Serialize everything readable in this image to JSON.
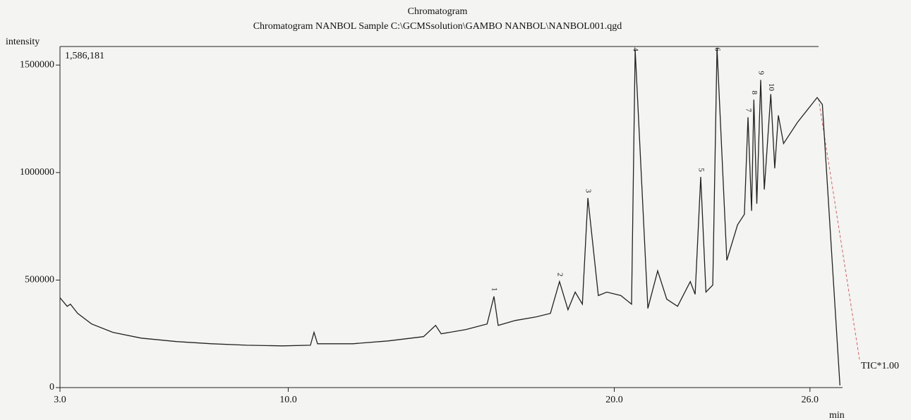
{
  "chart_data": {
    "type": "line",
    "title": "Chromatogram",
    "subtitle": "Chromatogram NANBOL Sample C:\\GCMSsolution\\GAMBO NANBOL\\NANBOL001.qgd",
    "y_label": "intensity",
    "x_label": "min",
    "max_label": "1,586,181",
    "xlim": [
      3,
      27
    ],
    "ylim": [
      0,
      1586181
    ],
    "xticks": [
      {
        "value": 3,
        "label": "3.0"
      },
      {
        "value": 10,
        "label": "10.0"
      },
      {
        "value": 20,
        "label": "20.0"
      },
      {
        "value": 26,
        "label": "26.0"
      }
    ],
    "yticks": [
      0,
      500000,
      1000000,
      1500000
    ],
    "series": [
      {
        "name": "TIC*1.00",
        "color": "#222222",
        "x": [
          3.0,
          3.22,
          3.32,
          3.54,
          3.97,
          4.62,
          5.49,
          6.57,
          7.65,
          8.74,
          9.82,
          10.68,
          10.79,
          10.9,
          11.98,
          13.06,
          14.15,
          14.52,
          14.69,
          15.45,
          16.1,
          16.31,
          16.44,
          16.96,
          17.61,
          18.04,
          18.32,
          18.58,
          18.8,
          19.02,
          19.19,
          19.51,
          19.77,
          20.2,
          20.53,
          20.64,
          21.03,
          21.33,
          21.61,
          21.94,
          22.33,
          22.48,
          22.65,
          22.81,
          23.02,
          23.15,
          23.45,
          23.78,
          23.99,
          24.1,
          24.21,
          24.28,
          24.37,
          24.49,
          24.6,
          24.8,
          24.92,
          25.03,
          25.19,
          25.62,
          26.05,
          26.22,
          26.38,
          26.92
        ],
        "values": [
          418000,
          378000,
          388000,
          345000,
          296000,
          257000,
          230000,
          214000,
          204000,
          197000,
          194000,
          197000,
          257000,
          204000,
          204000,
          217000,
          237000,
          289000,
          250000,
          270000,
          296000,
          424000,
          289000,
          312000,
          329000,
          345000,
          493000,
          362000,
          444000,
          388000,
          882000,
          428000,
          444000,
          428000,
          388000,
          1572000,
          368000,
          543000,
          411000,
          378000,
          493000,
          434000,
          980000,
          444000,
          477000,
          1580000,
          592000,
          757000,
          806000,
          1257000,
          822000,
          1339000,
          855000,
          1431000,
          921000,
          1365000,
          1020000,
          1266000,
          1135000,
          1234000,
          1316000,
          1349000,
          1316000,
          10000
        ]
      }
    ],
    "peaks": [
      {
        "label": "1",
        "x": 16.31,
        "y": 424000
      },
      {
        "label": "2",
        "x": 18.32,
        "y": 493000
      },
      {
        "label": "3",
        "x": 19.19,
        "y": 882000
      },
      {
        "label": "4",
        "x": 20.64,
        "y": 1572000
      },
      {
        "label": "5",
        "x": 22.65,
        "y": 980000
      },
      {
        "label": "6",
        "x": 23.15,
        "y": 1580000
      },
      {
        "label": "7",
        "x": 24.1,
        "y": 1257000
      },
      {
        "label": "8",
        "x": 24.28,
        "y": 1339000
      },
      {
        "label": "9",
        "x": 24.49,
        "y": 1431000
      },
      {
        "label": "10",
        "x": 24.8,
        "y": 1365000
      }
    ],
    "grid": false
  }
}
